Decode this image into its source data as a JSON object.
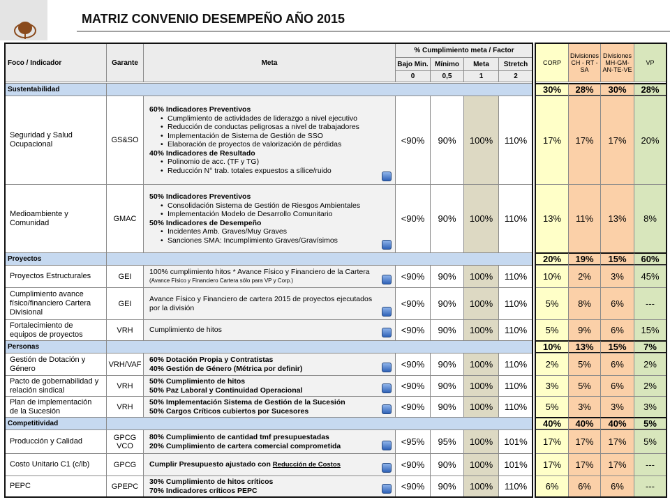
{
  "header": {
    "title": "MATRIZ CONVENIO DESEMPEÑO AÑO 2015"
  },
  "table": {
    "columns": {
      "foco": "Foco / Indicador",
      "garante": "Garante",
      "meta": "Meta",
      "cumplimiento": "% Cumplimiento meta / Factor",
      "levels": [
        "Bajo Min.",
        "Mínimo",
        "Meta",
        "Stretch"
      ],
      "factors": [
        "0",
        "0,5",
        "1",
        "2"
      ],
      "weights": [
        "CORP",
        "Divisiones CH - RT - SA",
        "Divisiones MH-GM-AN-TE-VE",
        "VP"
      ]
    },
    "sections": [
      {
        "name": "Sustentabilidad",
        "weights": [
          "30%",
          "28%",
          "30%",
          "28%"
        ],
        "rows": [
          {
            "indicator": "Seguridad y Salud Ocupacional",
            "garante": "GS&SO",
            "meta": [
              {
                "text": "60% Indicadores Preventivos",
                "items": [
                  "Cumplimiento de actividades de liderazgo a nivel ejecutivo",
                  "Reducción de conductas peligrosas a nivel de trabajadores",
                  "Implementación de Sistema de Gestión de SSO",
                  "Elaboración de proyectos de valorización de pérdidas"
                ]
              },
              {
                "text": "40% Indicadores de Resultado",
                "items": [
                  "Polinomio de acc. (TF y TG)",
                  "Reducción N° trab. totales expuestos a sílice/ruido"
                ]
              }
            ],
            "levels": [
              "<90%",
              "90%",
              "100%",
              "110%"
            ],
            "weights": [
              "17%",
              "17%",
              "17%",
              "20%"
            ]
          },
          {
            "indicator": "Medioambiente y Comunidad",
            "garante": "GMAC",
            "meta": [
              {
                "text": "50% Indicadores Preventivos",
                "items": [
                  "Consolidación Sistema de Gestión de Riesgos Ambientales",
                  "Implementación Modelo de Desarrollo Comunitario"
                ]
              },
              {
                "text": "50% Indicadores de Desempeño",
                "items": [
                  "Incidentes Amb. Graves/Muy Graves",
                  "Sanciones SMA: Incumplimiento Graves/Gravísimos"
                ]
              }
            ],
            "levels": [
              "<90%",
              "90%",
              "100%",
              "110%"
            ],
            "weights": [
              "13%",
              "11%",
              "13%",
              "8%"
            ]
          }
        ]
      },
      {
        "name": "Proyectos",
        "weights": [
          "20%",
          "19%",
          "15%",
          "60%"
        ],
        "rows": [
          {
            "indicator": "Proyectos Estructurales",
            "garante": "GEI",
            "meta": [
              {
                "text": "100% cumplimiento hitos * Avance Físico y Financiero de la Cartera",
                "note": "(Avance Físico y Financiero Cartera sólo para VP y Corp.)"
              }
            ],
            "levels": [
              "<90%",
              "90%",
              "100%",
              "110%"
            ],
            "weights": [
              "10%",
              "2%",
              "3%",
              "45%"
            ]
          },
          {
            "indicator": "Cumplimiento avance físico/financiero Cartera Divisional",
            "garante": "GEI",
            "meta": [
              {
                "text": "Avance Físico y Financiero de cartera 2015 de proyectos ejecutados por la división"
              }
            ],
            "levels": [
              "<90%",
              "90%",
              "100%",
              "110%"
            ],
            "weights": [
              "5%",
              "8%",
              "6%",
              "---"
            ]
          },
          {
            "indicator": "Fortalecimiento de equipos de proyectos",
            "garante": "VRH",
            "meta": [
              {
                "text": "Cumplimiento de hitos"
              }
            ],
            "levels": [
              "<90%",
              "90%",
              "100%",
              "110%"
            ],
            "weights": [
              "5%",
              "9%",
              "6%",
              "15%"
            ]
          }
        ]
      },
      {
        "name": "Personas",
        "weights": [
          "10%",
          "13%",
          "15%",
          "7%"
        ],
        "rows": [
          {
            "indicator": "Gestión de Dotación y Género",
            "garante": "VRH/VAF",
            "meta": [
              {
                "text": "60% Dotación Propia y Contratistas"
              },
              {
                "text": "40% Gestión de Género (Métrica por definir)"
              }
            ],
            "levels": [
              "<90%",
              "90%",
              "100%",
              "110%"
            ],
            "weights": [
              "2%",
              "5%",
              "6%",
              "2%"
            ]
          },
          {
            "indicator": "Pacto de gobernabilidad y relación sindical",
            "garante": "VRH",
            "meta": [
              {
                "text": "50% Cumplimiento de hitos"
              },
              {
                "text": "50% Paz Laboral y Continuidad Operacional"
              }
            ],
            "levels": [
              "<90%",
              "90%",
              "100%",
              "110%"
            ],
            "weights": [
              "3%",
              "5%",
              "6%",
              "2%"
            ]
          },
          {
            "indicator": "Plan de implementación de la Sucesión",
            "garante": "VRH",
            "meta": [
              {
                "text": "50% Implementación Sistema de Gestión de la Sucesión"
              },
              {
                "text": "50% Cargos Críticos cubiertos por Sucesores"
              }
            ],
            "levels": [
              "<90%",
              "90%",
              "100%",
              "110%"
            ],
            "weights": [
              "5%",
              "3%",
              "3%",
              "3%"
            ]
          }
        ]
      },
      {
        "name": "Competitividad",
        "weights": [
          "40%",
          "40%",
          "40%",
          "5%"
        ],
        "rows": [
          {
            "indicator": "Producción y Calidad",
            "garante": "GPCG VCO",
            "meta": [
              {
                "text": "80% Cumplimiento de cantidad tmf presupuestadas"
              },
              {
                "text": "20% Cumplimiento de cartera comercial comprometida"
              }
            ],
            "levels": [
              "<95%",
              "95%",
              "100%",
              "101%"
            ],
            "weights": [
              "17%",
              "17%",
              "17%",
              "5%"
            ]
          },
          {
            "indicator": "Costo Unitario C1 (c/lb)",
            "garante": "GPCG",
            "meta": [
              {
                "text": "Cumplir Presupuesto ajustado con",
                "link": "Reducción de Costos"
              }
            ],
            "levels": [
              "<90%",
              "90%",
              "100%",
              "101%"
            ],
            "weights": [
              "17%",
              "17%",
              "17%",
              "---"
            ]
          },
          {
            "indicator": "PEPC",
            "garante": "GPEPC",
            "meta": [
              {
                "text": "30% Cumplimiento de hitos críticos"
              },
              {
                "text": "70% Indicadores críticos PEPC"
              }
            ],
            "levels": [
              "<90%",
              "90%",
              "100%",
              "110%"
            ],
            "weights": [
              "6%",
              "6%",
              "6%",
              "---"
            ]
          }
        ]
      }
    ]
  }
}
